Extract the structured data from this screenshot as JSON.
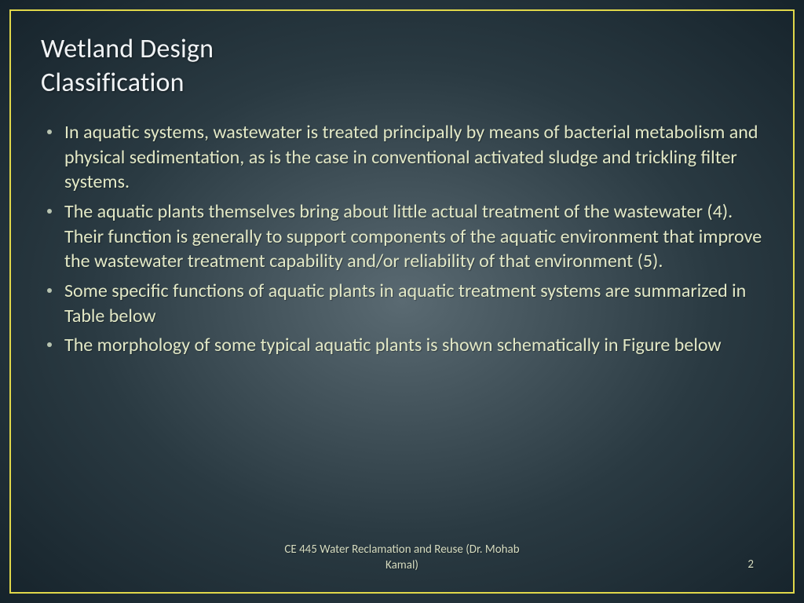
{
  "colors": {
    "border": "#e0d74a",
    "title": "#f0f3f5",
    "bullet_marker": "#b8c4b0",
    "body_text": "#e2e8c6",
    "footer_text": "#d6dcc0"
  },
  "typography": {
    "title_fontsize": 34,
    "body_fontsize": 24,
    "footer_fontsize": 15
  },
  "title_line1": "Wetland Design",
  "title_line2": "Classification",
  "bullets": [
    "In aquatic systems, wastewater is treated principally by means of bacterial metabolism and physical sedimentation, as is the case in conventional activated sludge and trickling filter systems.",
    "The aquatic plants themselves bring about little actual treatment of the wastewater (4). Their function is generally to support components of the aquatic environment that improve the wastewater treatment capability and/or reliability of that environment (5).",
    "Some specific functions of aquatic plants in aquatic treatment systems are summarized in Table below",
    "The morphology of some typical aquatic plants is shown schematically in Figure below"
  ],
  "footer_center_line1": "CE 445 Water Reclamation and Reuse (Dr. Mohab",
  "footer_center_line2": "Kamal)",
  "page_number": "2"
}
